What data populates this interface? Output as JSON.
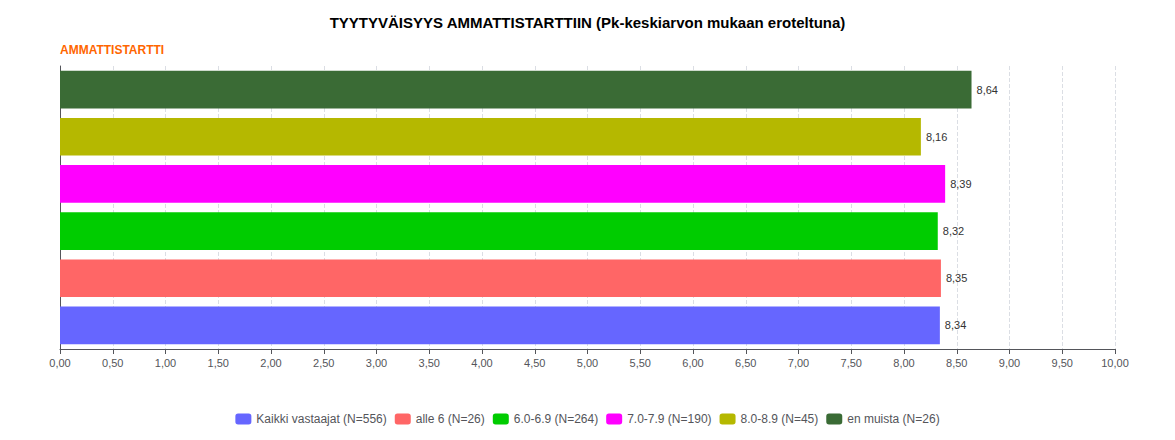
{
  "chart_data": {
    "type": "bar",
    "orientation": "horizontal",
    "title": "TYYTYVÄISYYS AMMATTISTARTTIIN (Pk-keskiarvon mukaan eroteltuna)",
    "annotations": [
      {
        "text": "AMMATTISTARTTI",
        "color": "#FF6600"
      }
    ],
    "categories": [
      "Kaikki vastaajat (N=556)",
      "alle 6 (N=26)",
      "6.0-6.9 (N=264)",
      "7.0-7.9 (N=190)",
      "8.0-8.9 (N=45)",
      "en muista (N=26)"
    ],
    "values": [
      8.34,
      8.35,
      8.32,
      8.39,
      8.16,
      8.64
    ],
    "value_labels": [
      "8,34",
      "8,35",
      "8,32",
      "8,39",
      "8,16",
      "8,64"
    ],
    "colors": [
      "#6666ff",
      "#ff6666",
      "#00cc00",
      "#ff00ff",
      "#b5b800",
      "#3a6b35"
    ],
    "xlim": [
      0,
      10
    ],
    "xticks": [
      {
        "value": 0.0,
        "label": "0,00"
      },
      {
        "value": 0.5,
        "label": "0,50"
      },
      {
        "value": 1.0,
        "label": "1,00"
      },
      {
        "value": 1.5,
        "label": "1,50"
      },
      {
        "value": 2.0,
        "label": "2,00"
      },
      {
        "value": 2.5,
        "label": "2,50"
      },
      {
        "value": 3.0,
        "label": "3,00"
      },
      {
        "value": 3.5,
        "label": "3,50"
      },
      {
        "value": 4.0,
        "label": "4,00"
      },
      {
        "value": 4.5,
        "label": "4,50"
      },
      {
        "value": 5.0,
        "label": "5,00"
      },
      {
        "value": 5.5,
        "label": "5,50"
      },
      {
        "value": 6.0,
        "label": "6,00"
      },
      {
        "value": 6.5,
        "label": "6,50"
      },
      {
        "value": 7.0,
        "label": "7,00"
      },
      {
        "value": 7.5,
        "label": "7,50"
      },
      {
        "value": 8.0,
        "label": "8,00"
      },
      {
        "value": 8.5,
        "label": "8,50"
      },
      {
        "value": 9.0,
        "label": "9,00"
      },
      {
        "value": 9.5,
        "label": "9,50"
      },
      {
        "value": 10.0,
        "label": "10,00"
      }
    ],
    "grid": true,
    "legend": "bottom",
    "data_labels": true,
    "tick_labels": "x"
  }
}
